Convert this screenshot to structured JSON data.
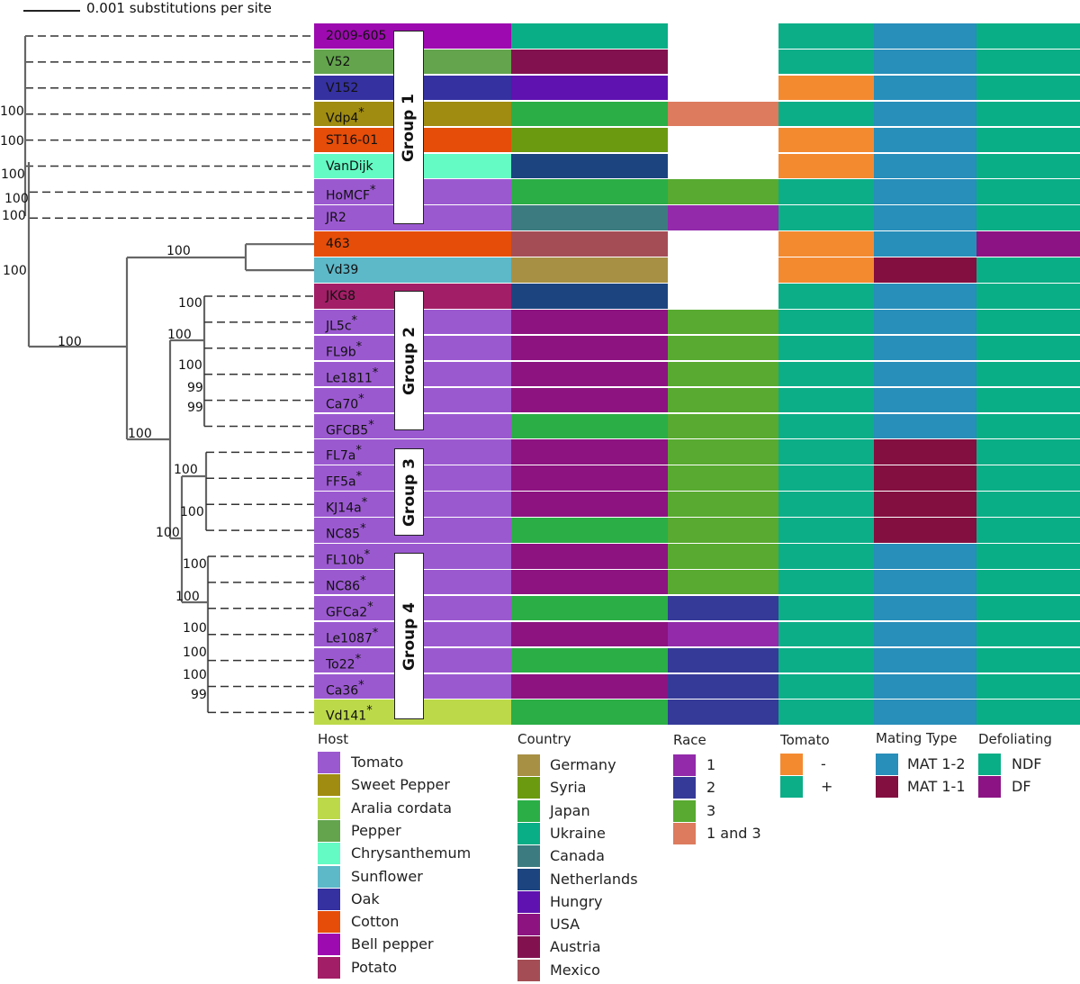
{
  "scale": {
    "label": "0.001 substitutions per site"
  },
  "columns": [
    "Host",
    "Country",
    "Race",
    "Tomato",
    "Mating Type",
    "Defoliating"
  ],
  "groups": [
    "Group 1",
    "Group 2",
    "Group 3",
    "Group 4"
  ],
  "bootstrap": [
    "100",
    "100",
    "100",
    "100",
    "100",
    "100",
    "100",
    "100",
    "100",
    "100",
    "100",
    "100",
    "99",
    "99",
    "100",
    "100",
    "100",
    "100",
    "100",
    "100",
    "100",
    "100",
    "99"
  ],
  "rows": [
    {
      "name": "2009-605",
      "star": false,
      "host": "Bell pepper",
      "country": "Ukraine",
      "race": null,
      "tomato": "+",
      "mating": "MAT 1-2",
      "defoliating": "NDF"
    },
    {
      "name": "V52",
      "star": false,
      "host": "Pepper",
      "country": "Austria",
      "race": null,
      "tomato": "+",
      "mating": "MAT 1-2",
      "defoliating": "NDF"
    },
    {
      "name": "V152",
      "star": false,
      "host": "Oak",
      "country": "Hungry",
      "race": null,
      "tomato": "-",
      "mating": "MAT 1-2",
      "defoliating": "NDF"
    },
    {
      "name": "Vdp4",
      "star": true,
      "host": "Sweet Pepper",
      "country": "Japan",
      "race": "1 and 3",
      "tomato": "+",
      "mating": "MAT 1-2",
      "defoliating": "NDF"
    },
    {
      "name": "ST16-01",
      "star": false,
      "host": "Cotton",
      "country": "Syria",
      "race": null,
      "tomato": "-",
      "mating": "MAT 1-2",
      "defoliating": "NDF"
    },
    {
      "name": "VanDijk",
      "star": false,
      "host": "Chrysanthemum",
      "country": "Netherlands",
      "race": null,
      "tomato": "-",
      "mating": "MAT 1-2",
      "defoliating": "NDF"
    },
    {
      "name": "HoMCF",
      "star": true,
      "host": "Tomato",
      "country": "Japan",
      "race": "3",
      "tomato": "+",
      "mating": "MAT 1-2",
      "defoliating": "NDF"
    },
    {
      "name": "JR2",
      "star": false,
      "host": "Tomato",
      "country": "Canada",
      "race": "1",
      "tomato": "+",
      "mating": "MAT 1-2",
      "defoliating": "NDF"
    },
    {
      "name": "463",
      "star": false,
      "host": "Cotton",
      "country": "Mexico",
      "race": null,
      "tomato": "-",
      "mating": "MAT 1-2",
      "defoliating": "DF"
    },
    {
      "name": "Vd39",
      "star": false,
      "host": "Sunflower",
      "country": "Germany",
      "race": null,
      "tomato": "-",
      "mating": "MAT 1-1",
      "defoliating": "NDF"
    },
    {
      "name": "JKG8",
      "star": false,
      "host": "Potato",
      "country": "Netherlands",
      "race": null,
      "tomato": "+",
      "mating": "MAT 1-2",
      "defoliating": "NDF"
    },
    {
      "name": "JL5c",
      "star": true,
      "host": "Tomato",
      "country": "USA",
      "race": "3",
      "tomato": "+",
      "mating": "MAT 1-2",
      "defoliating": "NDF"
    },
    {
      "name": "FL9b",
      "star": true,
      "host": "Tomato",
      "country": "USA",
      "race": "3",
      "tomato": "+",
      "mating": "MAT 1-2",
      "defoliating": "NDF"
    },
    {
      "name": "Le1811",
      "star": true,
      "host": "Tomato",
      "country": "USA",
      "race": "3",
      "tomato": "+",
      "mating": "MAT 1-2",
      "defoliating": "NDF"
    },
    {
      "name": "Ca70",
      "star": true,
      "host": "Tomato",
      "country": "USA",
      "race": "3",
      "tomato": "+",
      "mating": "MAT 1-2",
      "defoliating": "NDF"
    },
    {
      "name": "GFCB5",
      "star": true,
      "host": "Tomato",
      "country": "Japan",
      "race": "3",
      "tomato": "+",
      "mating": "MAT 1-2",
      "defoliating": "NDF"
    },
    {
      "name": "FL7a",
      "star": true,
      "host": "Tomato",
      "country": "USA",
      "race": "3",
      "tomato": "+",
      "mating": "MAT 1-1",
      "defoliating": "NDF"
    },
    {
      "name": "FF5a",
      "star": true,
      "host": "Tomato",
      "country": "USA",
      "race": "3",
      "tomato": "+",
      "mating": "MAT 1-1",
      "defoliating": "NDF"
    },
    {
      "name": "KJ14a",
      "star": true,
      "host": "Tomato",
      "country": "USA",
      "race": "3",
      "tomato": "+",
      "mating": "MAT 1-1",
      "defoliating": "NDF"
    },
    {
      "name": "NC85",
      "star": true,
      "host": "Tomato",
      "country": "Japan",
      "race": "3",
      "tomato": "+",
      "mating": "MAT 1-1",
      "defoliating": "NDF"
    },
    {
      "name": "FL10b",
      "star": true,
      "host": "Tomato",
      "country": "USA",
      "race": "3",
      "tomato": "+",
      "mating": "MAT 1-2",
      "defoliating": "NDF"
    },
    {
      "name": "NC86",
      "star": true,
      "host": "Tomato",
      "country": "USA",
      "race": "3",
      "tomato": "+",
      "mating": "MAT 1-2",
      "defoliating": "NDF"
    },
    {
      "name": "GFCa2",
      "star": true,
      "host": "Tomato",
      "country": "Japan",
      "race": "2",
      "tomato": "+",
      "mating": "MAT 1-2",
      "defoliating": "NDF"
    },
    {
      "name": "Le1087",
      "star": true,
      "host": "Tomato",
      "country": "USA",
      "race": "1",
      "tomato": "+",
      "mating": "MAT 1-2",
      "defoliating": "NDF"
    },
    {
      "name": "To22",
      "star": true,
      "host": "Tomato",
      "country": "Japan",
      "race": "2",
      "tomato": "+",
      "mating": "MAT 1-2",
      "defoliating": "NDF"
    },
    {
      "name": "Ca36",
      "star": true,
      "host": "Tomato",
      "country": "USA",
      "race": "2",
      "tomato": "+",
      "mating": "MAT 1-2",
      "defoliating": "NDF"
    },
    {
      "name": "Vd141",
      "star": true,
      "host": "Aralia cordata",
      "country": "Japan",
      "race": "2",
      "tomato": "+",
      "mating": "MAT 1-2",
      "defoliating": "NDF"
    }
  ],
  "legend": {
    "host": {
      "title": "Host",
      "items": [
        {
          "label": "Tomato",
          "color": "#9b59d0"
        },
        {
          "label": "Sweet Pepper",
          "color": "#a08c10"
        },
        {
          "label": "Aralia cordata",
          "color": "#bcd94a"
        },
        {
          "label": "Pepper",
          "color": "#63a44d"
        },
        {
          "label": "Chrysanthemum",
          "color": "#64fbc4"
        },
        {
          "label": "Sunflower",
          "color": "#5db8c8"
        },
        {
          "label": "Oak",
          "color": "#3531a0"
        },
        {
          "label": "Cotton",
          "color": "#e54d09"
        },
        {
          "label": "Bell pepper",
          "color": "#9d0aaf"
        },
        {
          "label": "Potato",
          "color": "#a21e66"
        }
      ]
    },
    "country": {
      "title": "Country",
      "items": [
        {
          "label": "Germany",
          "color": "#a79044"
        },
        {
          "label": "Syria",
          "color": "#6b9a10"
        },
        {
          "label": "Japan",
          "color": "#2bae46"
        },
        {
          "label": "Ukraine",
          "color": "#0aae86"
        },
        {
          "label": "Canada",
          "color": "#3c7c80"
        },
        {
          "label": "Netherlands",
          "color": "#1c4580"
        },
        {
          "label": "Hungry",
          "color": "#5f12b0"
        },
        {
          "label": "USA",
          "color": "#8c1380"
        },
        {
          "label": "Austria",
          "color": "#82124f"
        },
        {
          "label": "Mexico",
          "color": "#a44d55"
        }
      ]
    },
    "race": {
      "title": "Race",
      "items": [
        {
          "label": "1",
          "color": "#922aaa"
        },
        {
          "label": "2",
          "color": "#353a98"
        },
        {
          "label": "3",
          "color": "#58aa30"
        },
        {
          "label": "1 and 3",
          "color": "#dc7b5e"
        }
      ]
    },
    "tomato": {
      "title": "Tomato",
      "items": [
        {
          "label": "-",
          "color": "#f48a30"
        },
        {
          "label": "+",
          "color": "#0cae88"
        }
      ]
    },
    "mating": {
      "title": "Mating Type",
      "items": [
        {
          "label": "MAT 1-2",
          "color": "#288eba"
        },
        {
          "label": "MAT 1-1",
          "color": "#830f40"
        }
      ]
    },
    "defoliating": {
      "title": "Defoliating",
      "items": [
        {
          "label": "NDF",
          "color": "#0aae86"
        },
        {
          "label": "DF",
          "color": "#8c1383"
        }
      ]
    }
  }
}
